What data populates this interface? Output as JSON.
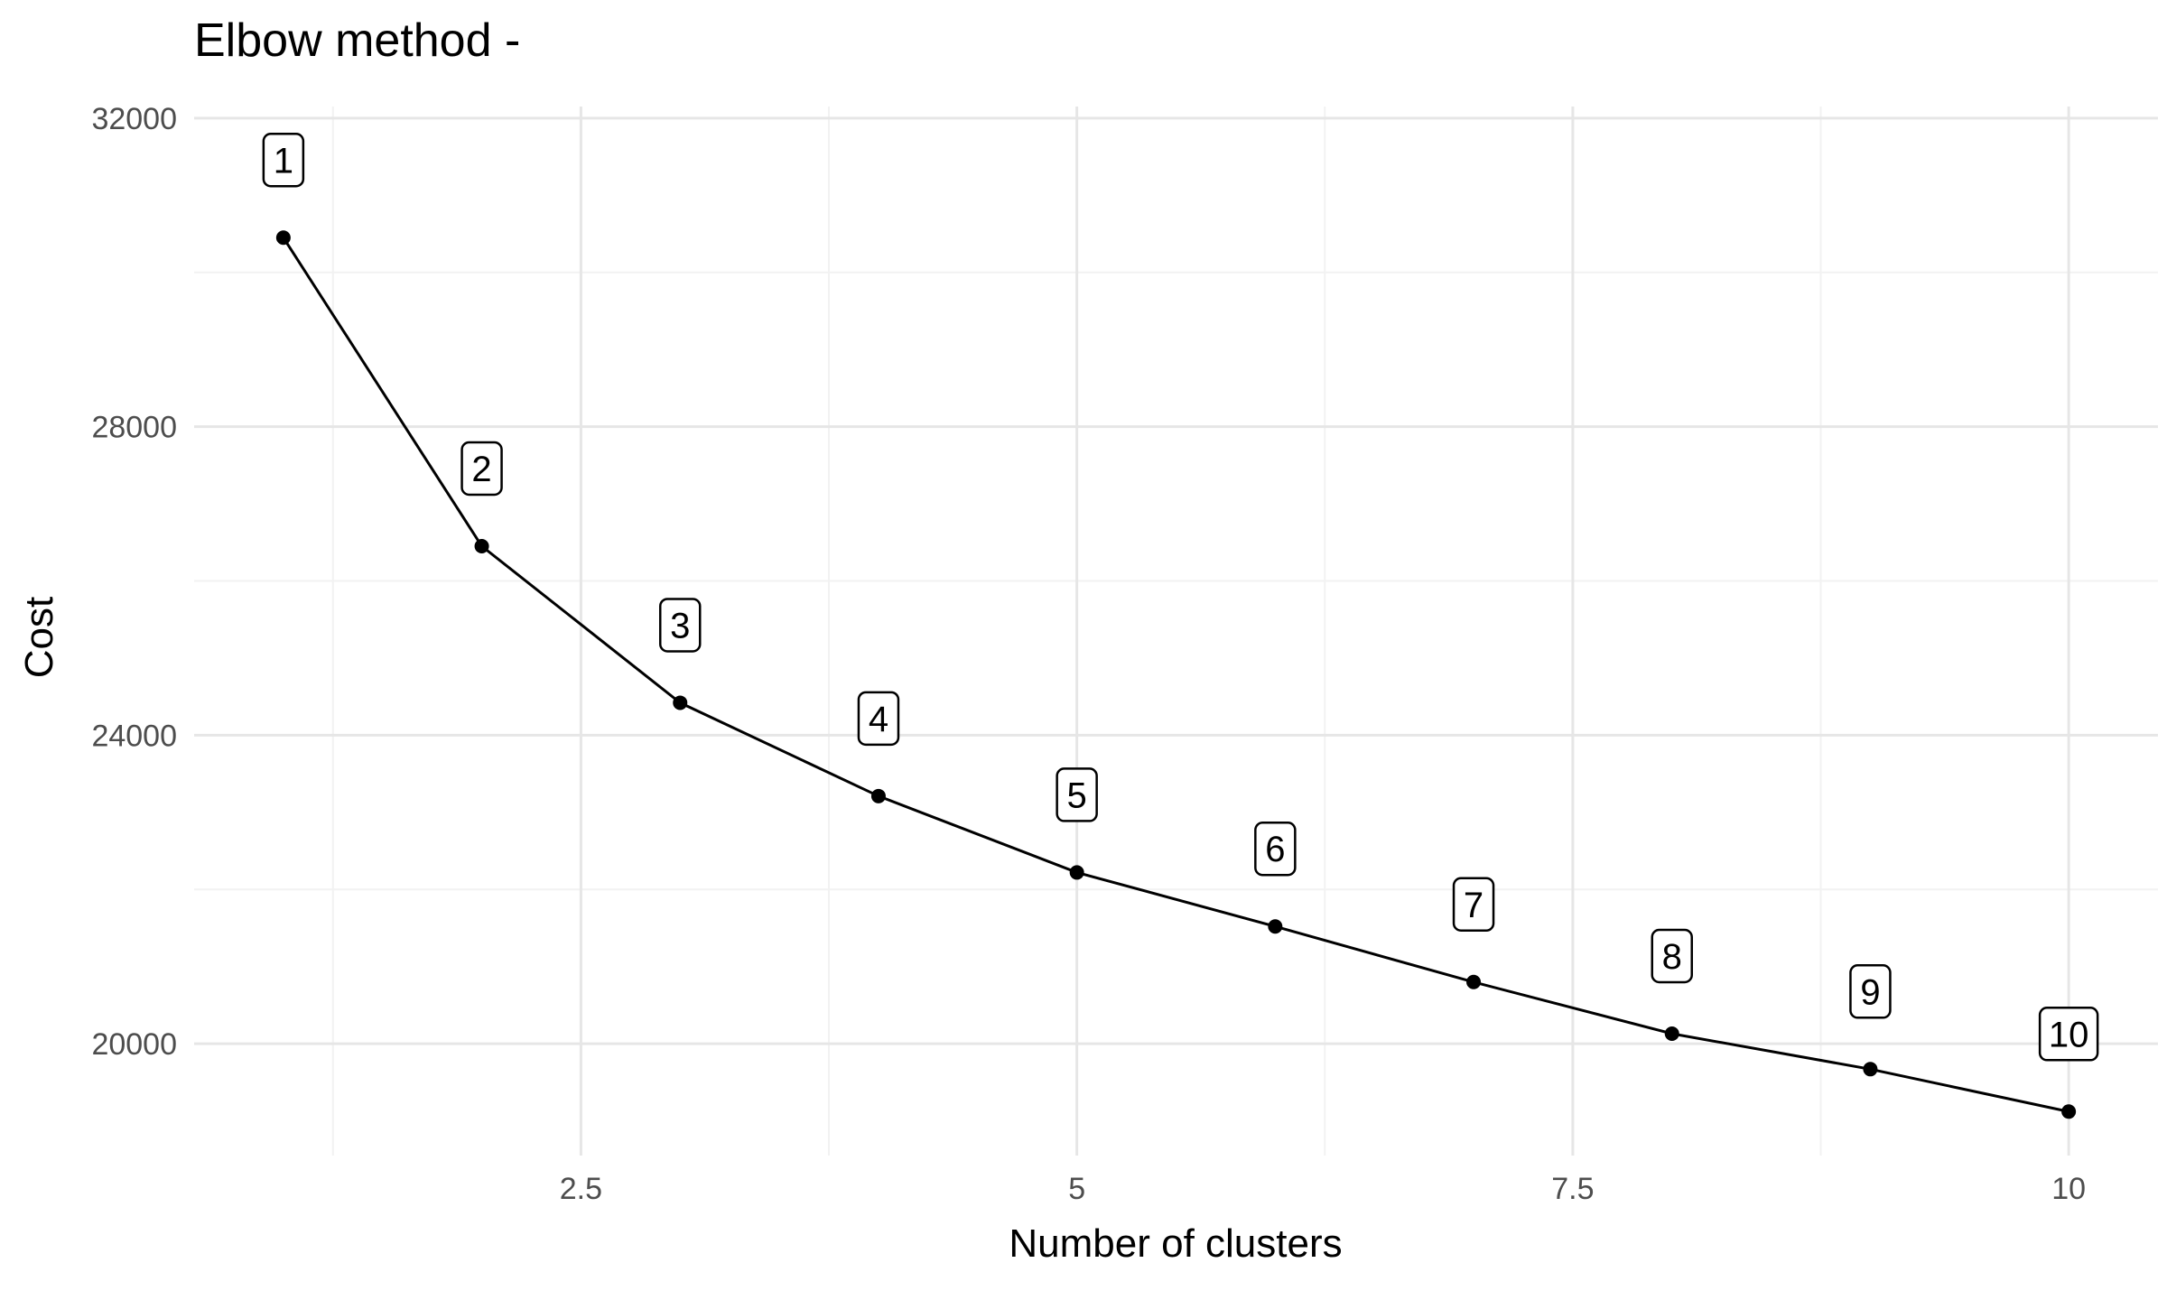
{
  "chart_data": {
    "type": "line",
    "title": "Elbow method -",
    "xlabel": "Number of clusters",
    "ylabel": "Cost",
    "x": [
      1,
      2,
      3,
      4,
      5,
      6,
      7,
      8,
      9,
      10
    ],
    "y": [
      30450,
      26450,
      24420,
      23210,
      22220,
      21520,
      20800,
      20130,
      19670,
      19120
    ],
    "point_labels": [
      "1",
      "2",
      "3",
      "4",
      "5",
      "6",
      "7",
      "8",
      "9",
      "10"
    ],
    "xlim": [
      0.55,
      10.45
    ],
    "ylim": [
      18550,
      32150
    ],
    "x_ticks": [
      2.5,
      5,
      7.5,
      10
    ],
    "x_tick_labels": [
      "2.5",
      "5",
      "7.5",
      "10"
    ],
    "x_minor_ticks": [
      1.25,
      3.75,
      6.25,
      8.75
    ],
    "y_ticks": [
      20000,
      24000,
      28000,
      32000
    ],
    "y_tick_labels": [
      "20000",
      "24000",
      "28000",
      "32000"
    ],
    "y_minor_ticks": [
      22000,
      26000,
      30000
    ],
    "grid": true,
    "legend": "none",
    "colors": {
      "line": "#000000",
      "grid_major": "#e6e6e6",
      "grid_minor": "#f2f2f2",
      "tick_text": "#4d4d4d"
    }
  }
}
